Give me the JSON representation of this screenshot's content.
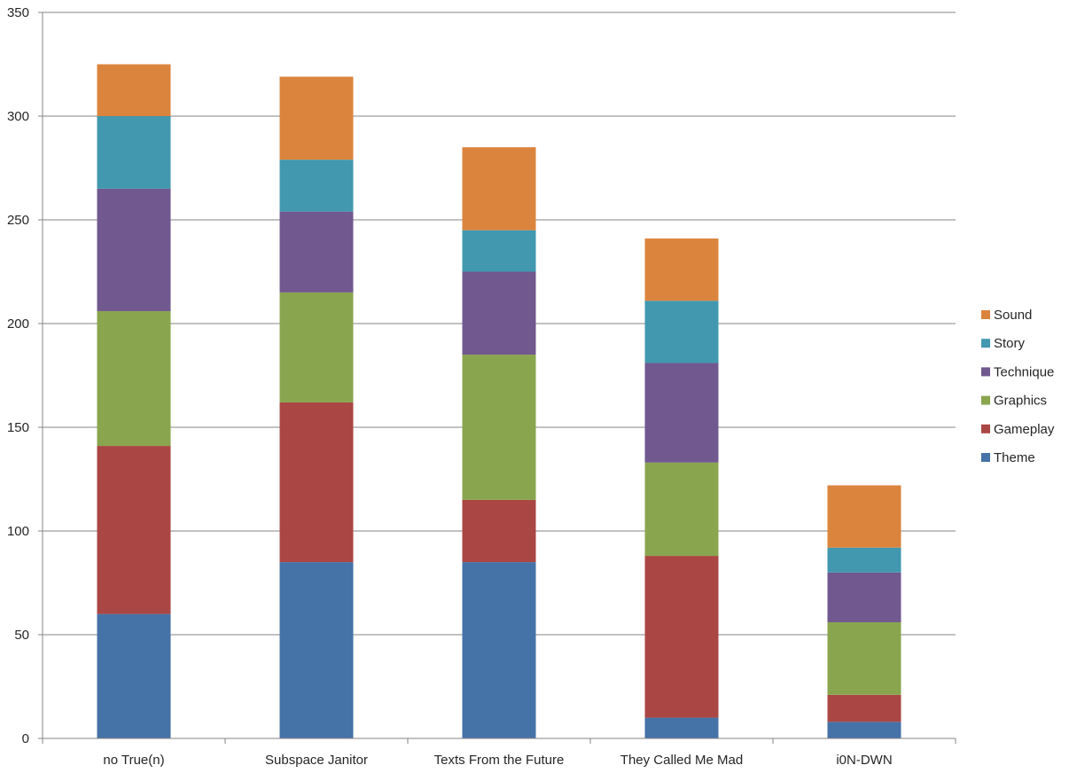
{
  "chart_data": {
    "type": "bar",
    "stacked": true,
    "title": "",
    "xlabel": "",
    "ylabel": "",
    "ylim": [
      0,
      350
    ],
    "yticks": [
      0,
      50,
      100,
      150,
      200,
      250,
      300,
      350
    ],
    "grid": true,
    "legend_position": "right",
    "categories": [
      "no True(n)",
      "Subspace Janitor",
      "Texts From the Future",
      "They Called Me Mad",
      "i0N-DWN"
    ],
    "series": [
      {
        "name": "Theme",
        "color": "#4572A7",
        "values": [
          60,
          85,
          85,
          10,
          8
        ]
      },
      {
        "name": "Gameplay",
        "color": "#AA4643",
        "values": [
          81,
          77,
          30,
          78,
          13
        ]
      },
      {
        "name": "Graphics",
        "color": "#89A54E",
        "values": [
          65,
          53,
          70,
          45,
          35
        ]
      },
      {
        "name": "Technique",
        "color": "#71588F",
        "values": [
          59,
          39,
          40,
          48,
          24
        ]
      },
      {
        "name": "Story",
        "color": "#4198AF",
        "values": [
          35,
          25,
          20,
          30,
          12
        ]
      },
      {
        "name": "Sound",
        "color": "#DB843D",
        "values": [
          25,
          40,
          40,
          30,
          30
        ]
      }
    ]
  }
}
